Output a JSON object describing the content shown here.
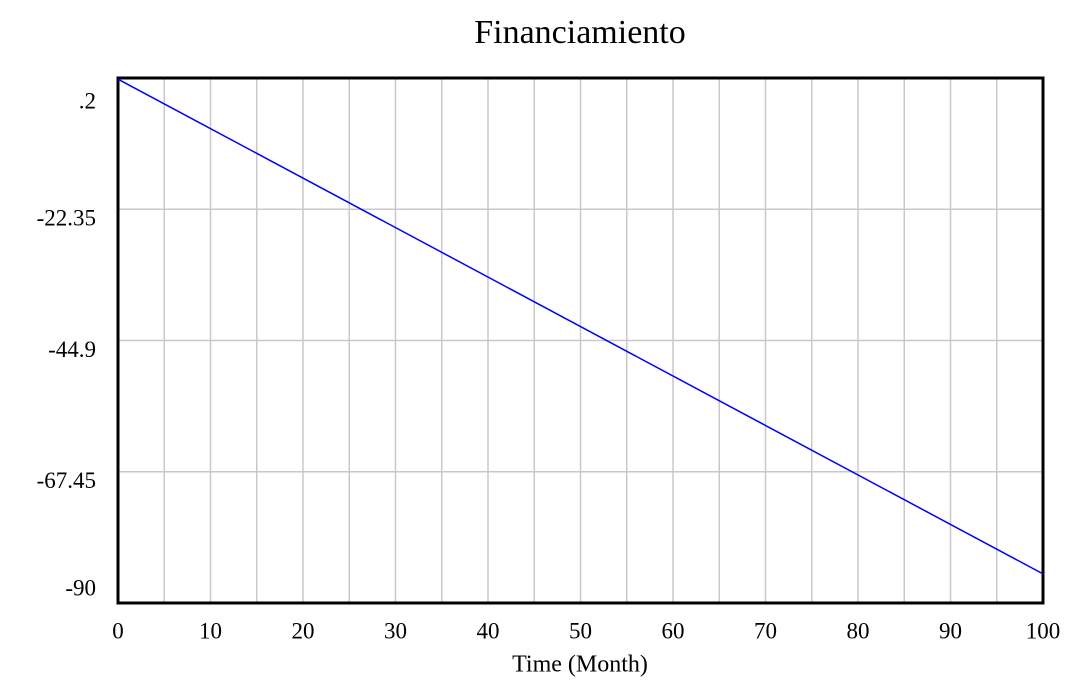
{
  "chart_data": {
    "type": "line",
    "title": "Financiamiento",
    "xlabel": "Time (Month)",
    "x": [
      0,
      100
    ],
    "series": [
      {
        "name": "Financiamiento",
        "color": "#0000ff",
        "values": [
          0,
          -85
        ]
      }
    ],
    "xlim": [
      0,
      100
    ],
    "xticks": [
      0,
      10,
      20,
      30,
      40,
      50,
      60,
      70,
      80,
      90,
      100
    ],
    "x_minor_ticks": [
      5,
      15,
      25,
      35,
      45,
      55,
      65,
      75,
      85,
      95
    ],
    "ylim": [
      -90,
      0.2
    ],
    "yticks": [
      {
        "value": 0.2,
        "label": ".2"
      },
      -22.35,
      -44.9,
      -67.45,
      -90
    ],
    "grid": true
  }
}
